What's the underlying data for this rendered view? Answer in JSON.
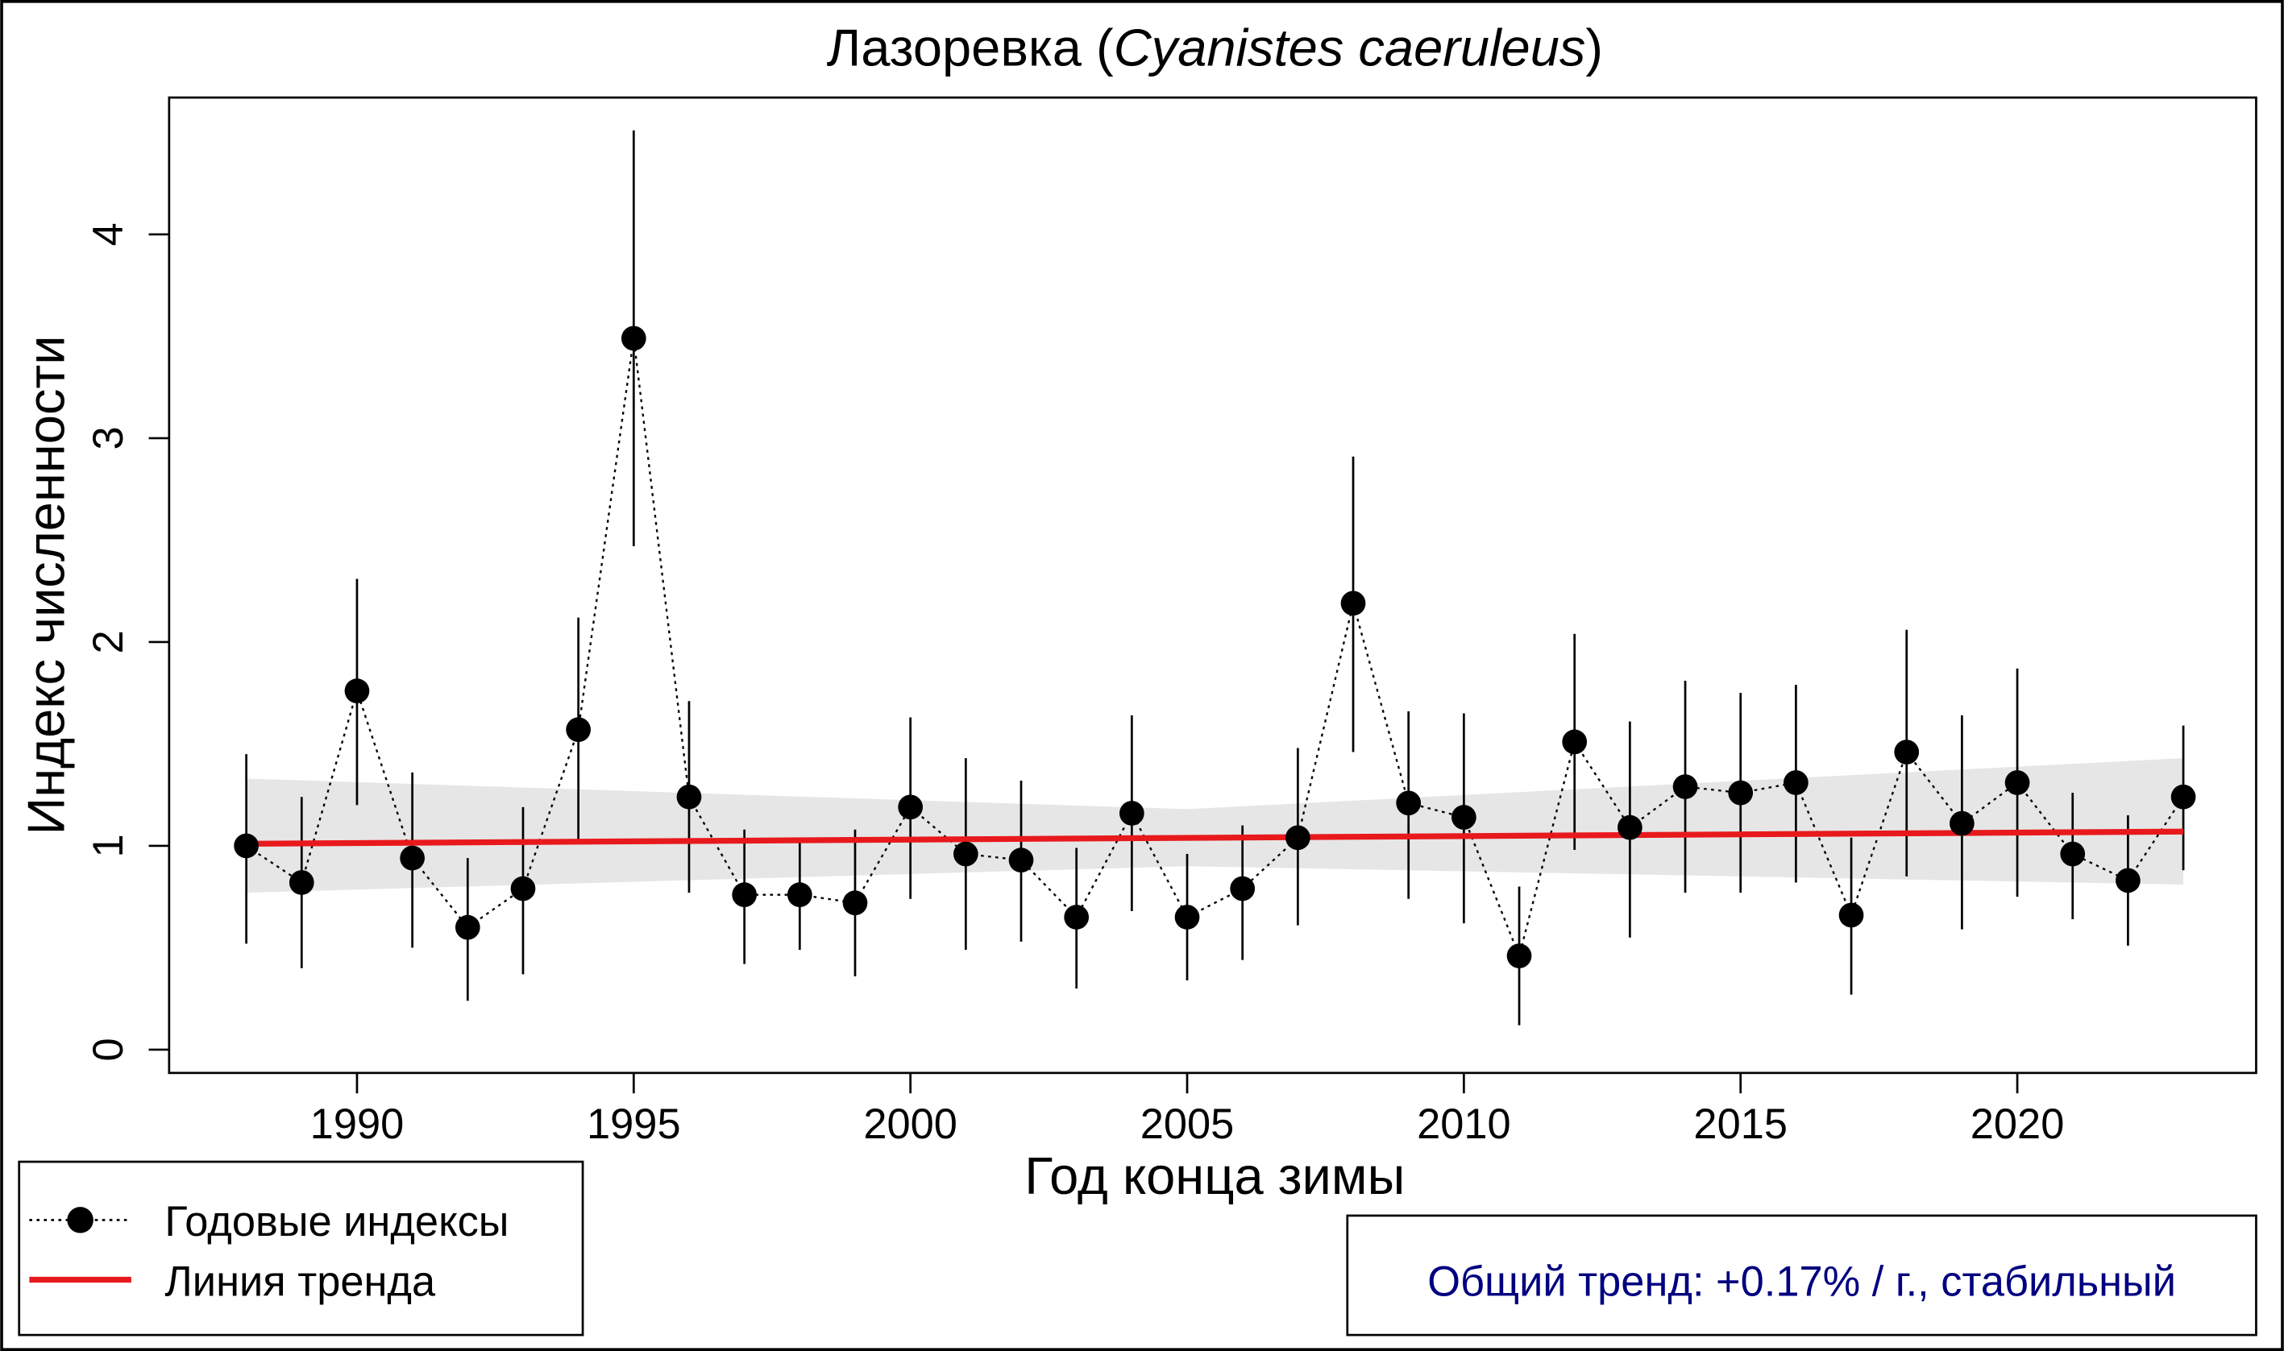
{
  "chart_data": {
    "type": "line",
    "title_main": "Лазоревка (",
    "title_latin": "Cyanistes caeruleus",
    "title_end": ")",
    "xlabel": "Год конца зимы",
    "ylabel": "Индекс численности",
    "xlim": [
      1986.6,
      2024.4
    ],
    "ylim": [
      0,
      4.6
    ],
    "xticks": [
      1990,
      1995,
      2000,
      2005,
      2010,
      2015,
      2020
    ],
    "yticks": [
      0,
      1,
      2,
      3,
      4
    ],
    "x": [
      1988,
      1989,
      1990,
      1991,
      1992,
      1993,
      1994,
      1995,
      1996,
      1997,
      1998,
      1999,
      2000,
      2001,
      2002,
      2003,
      2004,
      2005,
      2006,
      2007,
      2008,
      2009,
      2010,
      2011,
      2012,
      2013,
      2014,
      2015,
      2016,
      2017,
      2018,
      2019,
      2020,
      2021,
      2022,
      2023
    ],
    "series": [
      {
        "name": "Годовые индексы",
        "values": [
          1.0,
          0.82,
          1.76,
          0.94,
          0.6,
          0.79,
          1.57,
          3.49,
          1.24,
          0.76,
          0.76,
          0.72,
          1.19,
          0.96,
          0.93,
          0.65,
          1.16,
          0.65,
          0.79,
          1.04,
          2.19,
          1.21,
          1.14,
          0.46,
          1.51,
          1.09,
          1.29,
          1.26,
          1.31,
          0.66,
          1.46,
          1.11,
          1.31,
          0.96,
          0.83,
          1.24
        ],
        "upper": [
          1.45,
          1.24,
          2.31,
          1.36,
          0.94,
          1.19,
          2.12,
          4.51,
          1.71,
          1.08,
          1.03,
          1.08,
          1.63,
          1.43,
          1.32,
          0.99,
          1.64,
          0.96,
          1.1,
          1.48,
          2.91,
          1.66,
          1.65,
          0.8,
          2.04,
          1.61,
          1.81,
          1.75,
          1.79,
          1.04,
          2.06,
          1.64,
          1.87,
          1.26,
          1.15,
          1.59
        ],
        "lower": [
          0.52,
          0.4,
          1.2,
          0.5,
          0.24,
          0.37,
          1.01,
          2.47,
          0.77,
          0.42,
          0.49,
          0.36,
          0.74,
          0.49,
          0.53,
          0.3,
          0.68,
          0.34,
          0.44,
          0.61,
          1.46,
          0.74,
          0.62,
          0.12,
          0.98,
          0.55,
          0.77,
          0.77,
          0.82,
          0.27,
          0.85,
          0.59,
          0.75,
          0.64,
          0.51,
          0.88
        ]
      },
      {
        "name": "Линия тренда",
        "trend_start": [
          1988,
          1.01
        ],
        "trend_end": [
          2023,
          1.07
        ],
        "band_x": [
          1988,
          2005,
          2023
        ],
        "band_upper": [
          1.33,
          1.18,
          1.43
        ],
        "band_lower": [
          0.77,
          0.9,
          0.81
        ]
      }
    ],
    "legend": [
      "Годовые индексы",
      "Линия тренда"
    ],
    "legend_position": "bottom-left",
    "annotation": "Общий тренд: +0.17% / г., стабильный",
    "colors": {
      "points": "#000000",
      "trend": "#e8191c",
      "band": "#e6e6e6",
      "annotation": "#000080"
    }
  }
}
